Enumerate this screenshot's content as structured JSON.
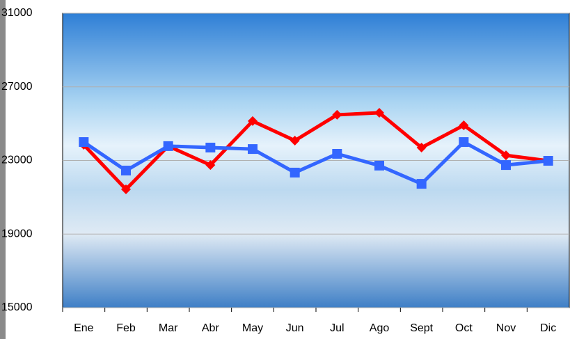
{
  "chart_data": {
    "type": "line",
    "categories": [
      "Ene",
      "Feb",
      "Mar",
      "Abr",
      "May",
      "Jun",
      "Jul",
      "Ago",
      "Sept",
      "Oct",
      "Nov",
      "Dic"
    ],
    "series": [
      {
        "color": "#ff0000",
        "marker": "diamond",
        "values": [
          23850,
          21430,
          23780,
          22750,
          25140,
          24080,
          25480,
          25590,
          23700,
          24910,
          23280,
          22980
        ]
      },
      {
        "color": "#3366ff",
        "marker": "square",
        "values": [
          24000,
          22450,
          23780,
          23700,
          23620,
          22340,
          23360,
          22720,
          21730,
          24000,
          22750,
          22980
        ]
      }
    ],
    "ylim": [
      15000,
      31000
    ],
    "yticks": [
      15000,
      19000,
      23000,
      27000,
      31000
    ],
    "grid": true
  }
}
